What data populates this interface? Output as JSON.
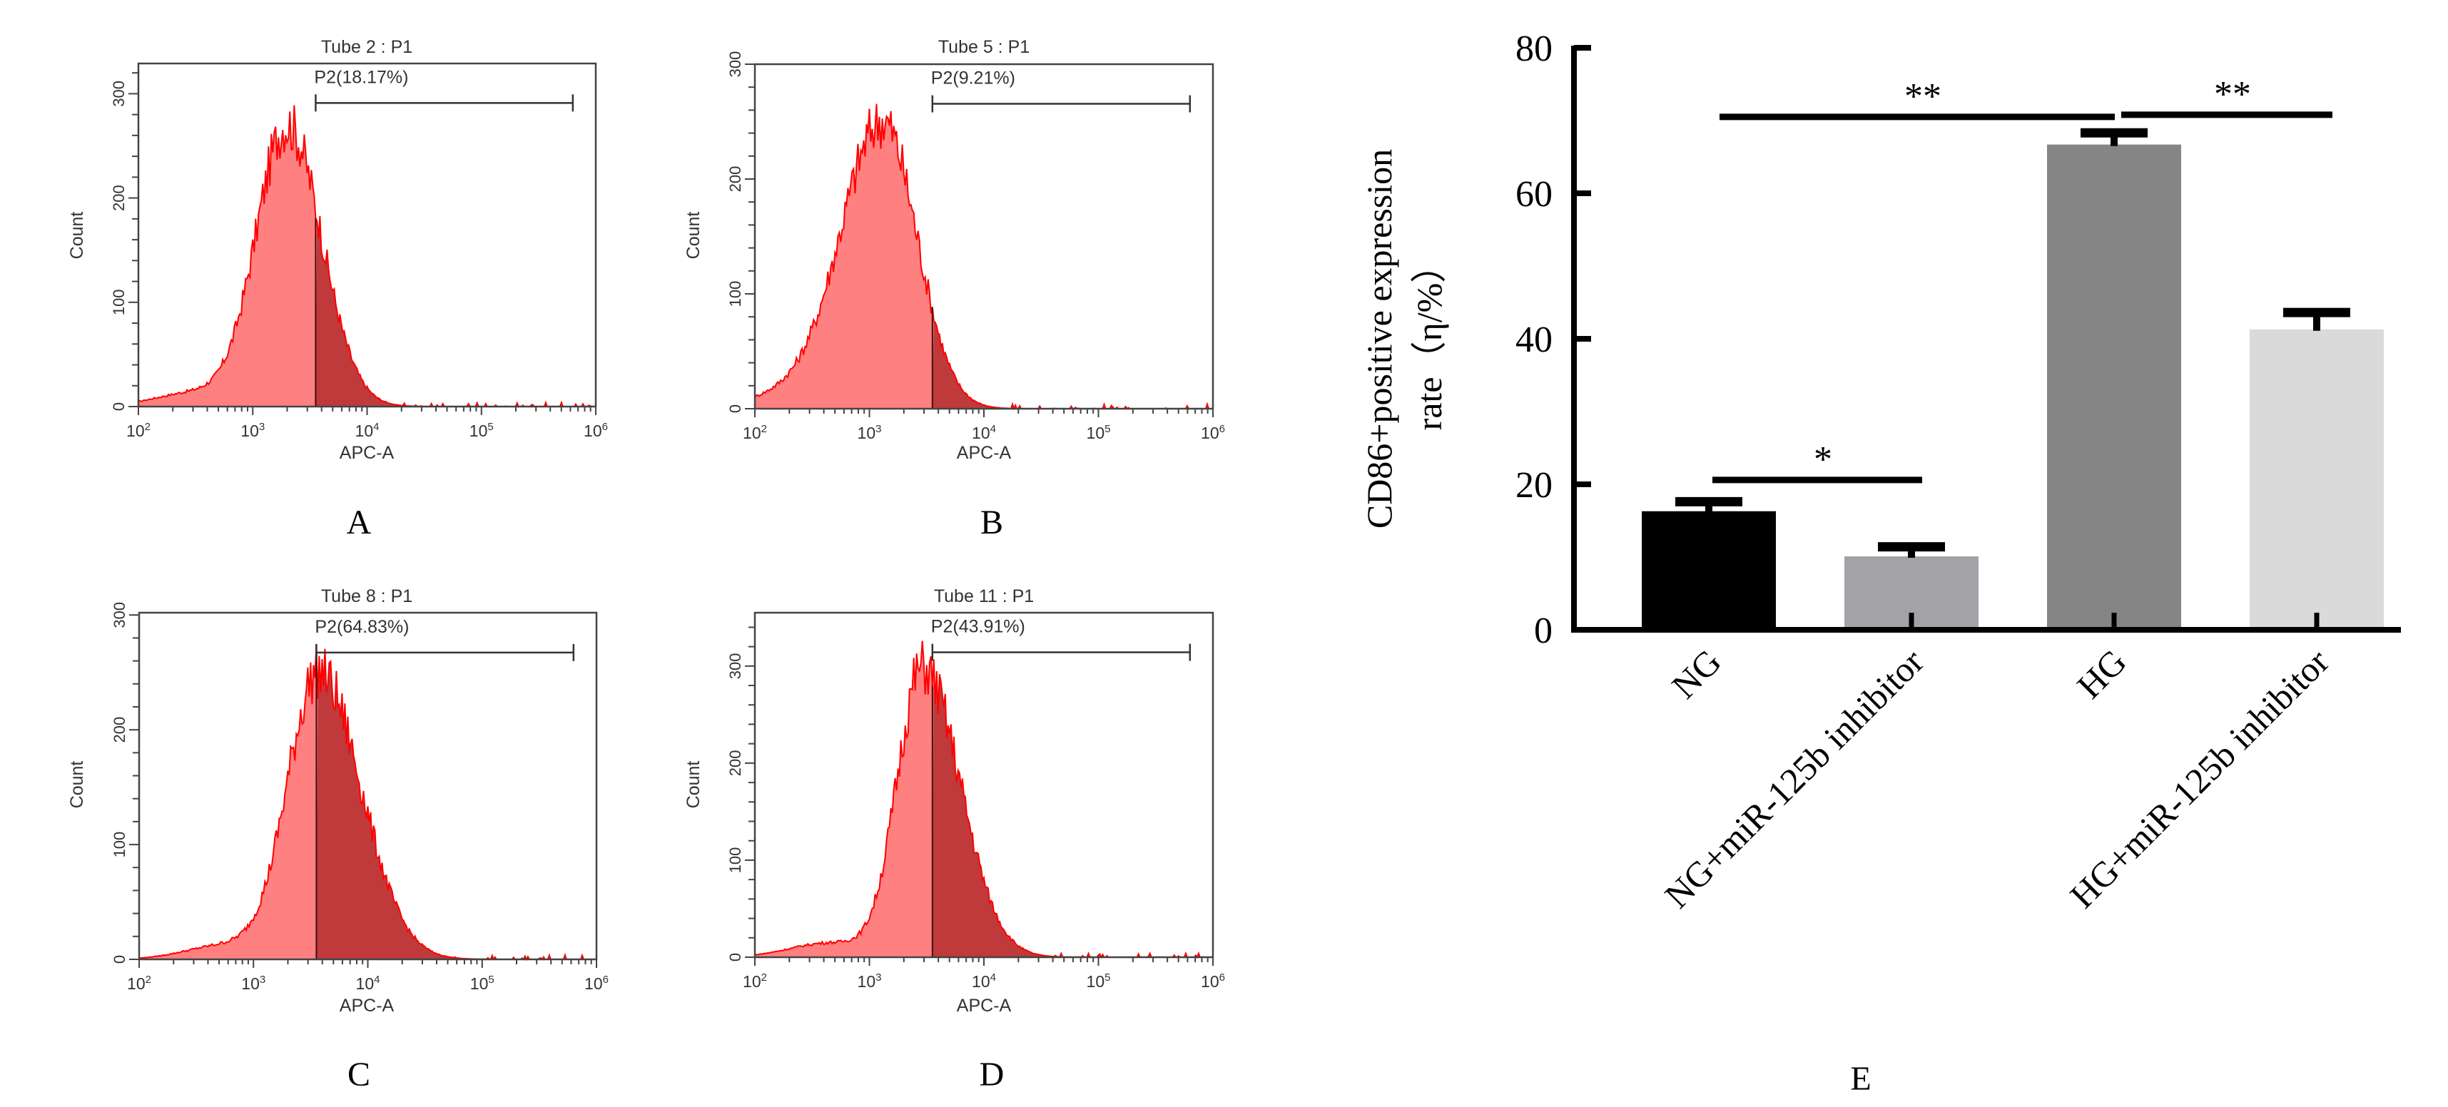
{
  "chart_data": [
    {
      "id": "A",
      "type": "area",
      "panel_label": "A",
      "title": "Tube 2 : P1",
      "xlabel": "APC-A",
      "ylabel": "Count",
      "x_scale": "log",
      "xlim": [
        100,
        1000000
      ],
      "x_ticks": [
        {
          "base": "10",
          "exp": "2"
        },
        {
          "base": "10",
          "exp": "3"
        },
        {
          "base": "10",
          "exp": "4"
        },
        {
          "base": "10",
          "exp": "5"
        },
        {
          "base": "10",
          "exp": "6"
        }
      ],
      "ylim": [
        0,
        329
      ],
      "y_ticks": [
        "0",
        "100",
        "200",
        "300"
      ],
      "gate": {
        "label": "P2(18.17%)",
        "name": "P2",
        "percent": 18.17,
        "from": 3550,
        "to": 630000
      },
      "distribution": {
        "peak_x": 2000,
        "peak_count": 270,
        "log_sd_left": 0.27,
        "log_sd_right": 0.3
      },
      "fill_color": "#ff8080",
      "gated_color": "#c0393b",
      "line_color": "#ff0000"
    },
    {
      "id": "B",
      "type": "area",
      "panel_label": "B",
      "title": "Tube 5 : P1",
      "xlabel": "APC-A",
      "ylabel": "Count",
      "x_scale": "log",
      "xlim": [
        100,
        1000000
      ],
      "x_ticks": [
        {
          "base": "10",
          "exp": "2"
        },
        {
          "base": "10",
          "exp": "3"
        },
        {
          "base": "10",
          "exp": "4"
        },
        {
          "base": "10",
          "exp": "5"
        },
        {
          "base": "10",
          "exp": "6"
        }
      ],
      "ylim": [
        0,
        300
      ],
      "y_ticks": [
        "0",
        "100",
        "200",
        "300"
      ],
      "gate": {
        "label": "P2(9.21%)",
        "name": "P2",
        "percent": 9.21,
        "from": 3550,
        "to": 630000
      },
      "distribution": {
        "peak_x": 1300,
        "peak_count": 250,
        "log_sd_left": 0.36,
        "log_sd_right": 0.3
      },
      "fill_color": "#ff8080",
      "gated_color": "#c0393b",
      "line_color": "#ff0000"
    },
    {
      "id": "C",
      "type": "area",
      "panel_label": "C",
      "title": "Tube 8 : P1",
      "xlabel": "APC-A",
      "ylabel": "Count",
      "x_scale": "log",
      "xlim": [
        100,
        1000000
      ],
      "x_ticks": [
        {
          "base": "10",
          "exp": "2"
        },
        {
          "base": "10",
          "exp": "3"
        },
        {
          "base": "10",
          "exp": "4"
        },
        {
          "base": "10",
          "exp": "5"
        },
        {
          "base": "10",
          "exp": "6"
        }
      ],
      "ylim": [
        0,
        302
      ],
      "y_ticks": [
        "0",
        "100",
        "200",
        "300"
      ],
      "gate": {
        "label": "P2(64.83%)",
        "name": "P2",
        "percent": 64.83,
        "from": 3550,
        "to": 630000
      },
      "distribution": {
        "peak_x": 3700,
        "peak_count": 250,
        "log_sd_left": 0.27,
        "log_sd_right": 0.37
      },
      "fill_color": "#ff8080",
      "gated_color": "#c0393b",
      "line_color": "#ff0000"
    },
    {
      "id": "D",
      "type": "area",
      "panel_label": "D",
      "title": "Tube 11 : P1",
      "xlabel": "APC-A",
      "ylabel": "Count",
      "x_scale": "log",
      "xlim": [
        100,
        1000000
      ],
      "x_ticks": [
        {
          "base": "10",
          "exp": "2"
        },
        {
          "base": "10",
          "exp": "3"
        },
        {
          "base": "10",
          "exp": "4"
        },
        {
          "base": "10",
          "exp": "5"
        },
        {
          "base": "10",
          "exp": "6"
        }
      ],
      "ylim": [
        0,
        355
      ],
      "y_ticks": [
        "0",
        "100",
        "200",
        "300"
      ],
      "gate": {
        "label": "P2(43.91%)",
        "name": "P2",
        "percent": 43.91,
        "from": 3550,
        "to": 630000
      },
      "distribution": {
        "peak_x": 2900,
        "peak_count": 298,
        "log_sd_left": 0.22,
        "log_sd_right": 0.33
      },
      "fill_color": "#ff8080",
      "gated_color": "#c0393b",
      "line_color": "#ff0000"
    },
    {
      "id": "E",
      "type": "bar",
      "panel_label": "E",
      "title": "",
      "xlabel": "",
      "ylabel": "CD86+positive expression rate（η/%）",
      "ylabel_lines": [
        "CD86+positive expression",
        "rate（η/%）"
      ],
      "categories": [
        "NG",
        "NG+miR-125b inhibitor",
        "HG",
        "HG+miR-125b inhibitor"
      ],
      "values": [
        16.3,
        10.1,
        66.7,
        41.3
      ],
      "error_upper": [
        18.2,
        12.0,
        68.9,
        44.2
      ],
      "colors": [
        "#000000",
        "#a3a3a7",
        "#858585",
        "#dadada"
      ],
      "ylim": [
        0,
        80
      ],
      "y_ticks": [
        "0",
        "20",
        "40",
        "60",
        "80"
      ],
      "grid": false,
      "significance": [
        {
          "from": 0,
          "to": 1,
          "label": "*",
          "level": 20.6
        },
        {
          "from": 0,
          "to": 2,
          "label": "**",
          "level": 70.5
        },
        {
          "from": 2,
          "to": 3,
          "label": "**",
          "level": 70.8
        }
      ]
    }
  ]
}
